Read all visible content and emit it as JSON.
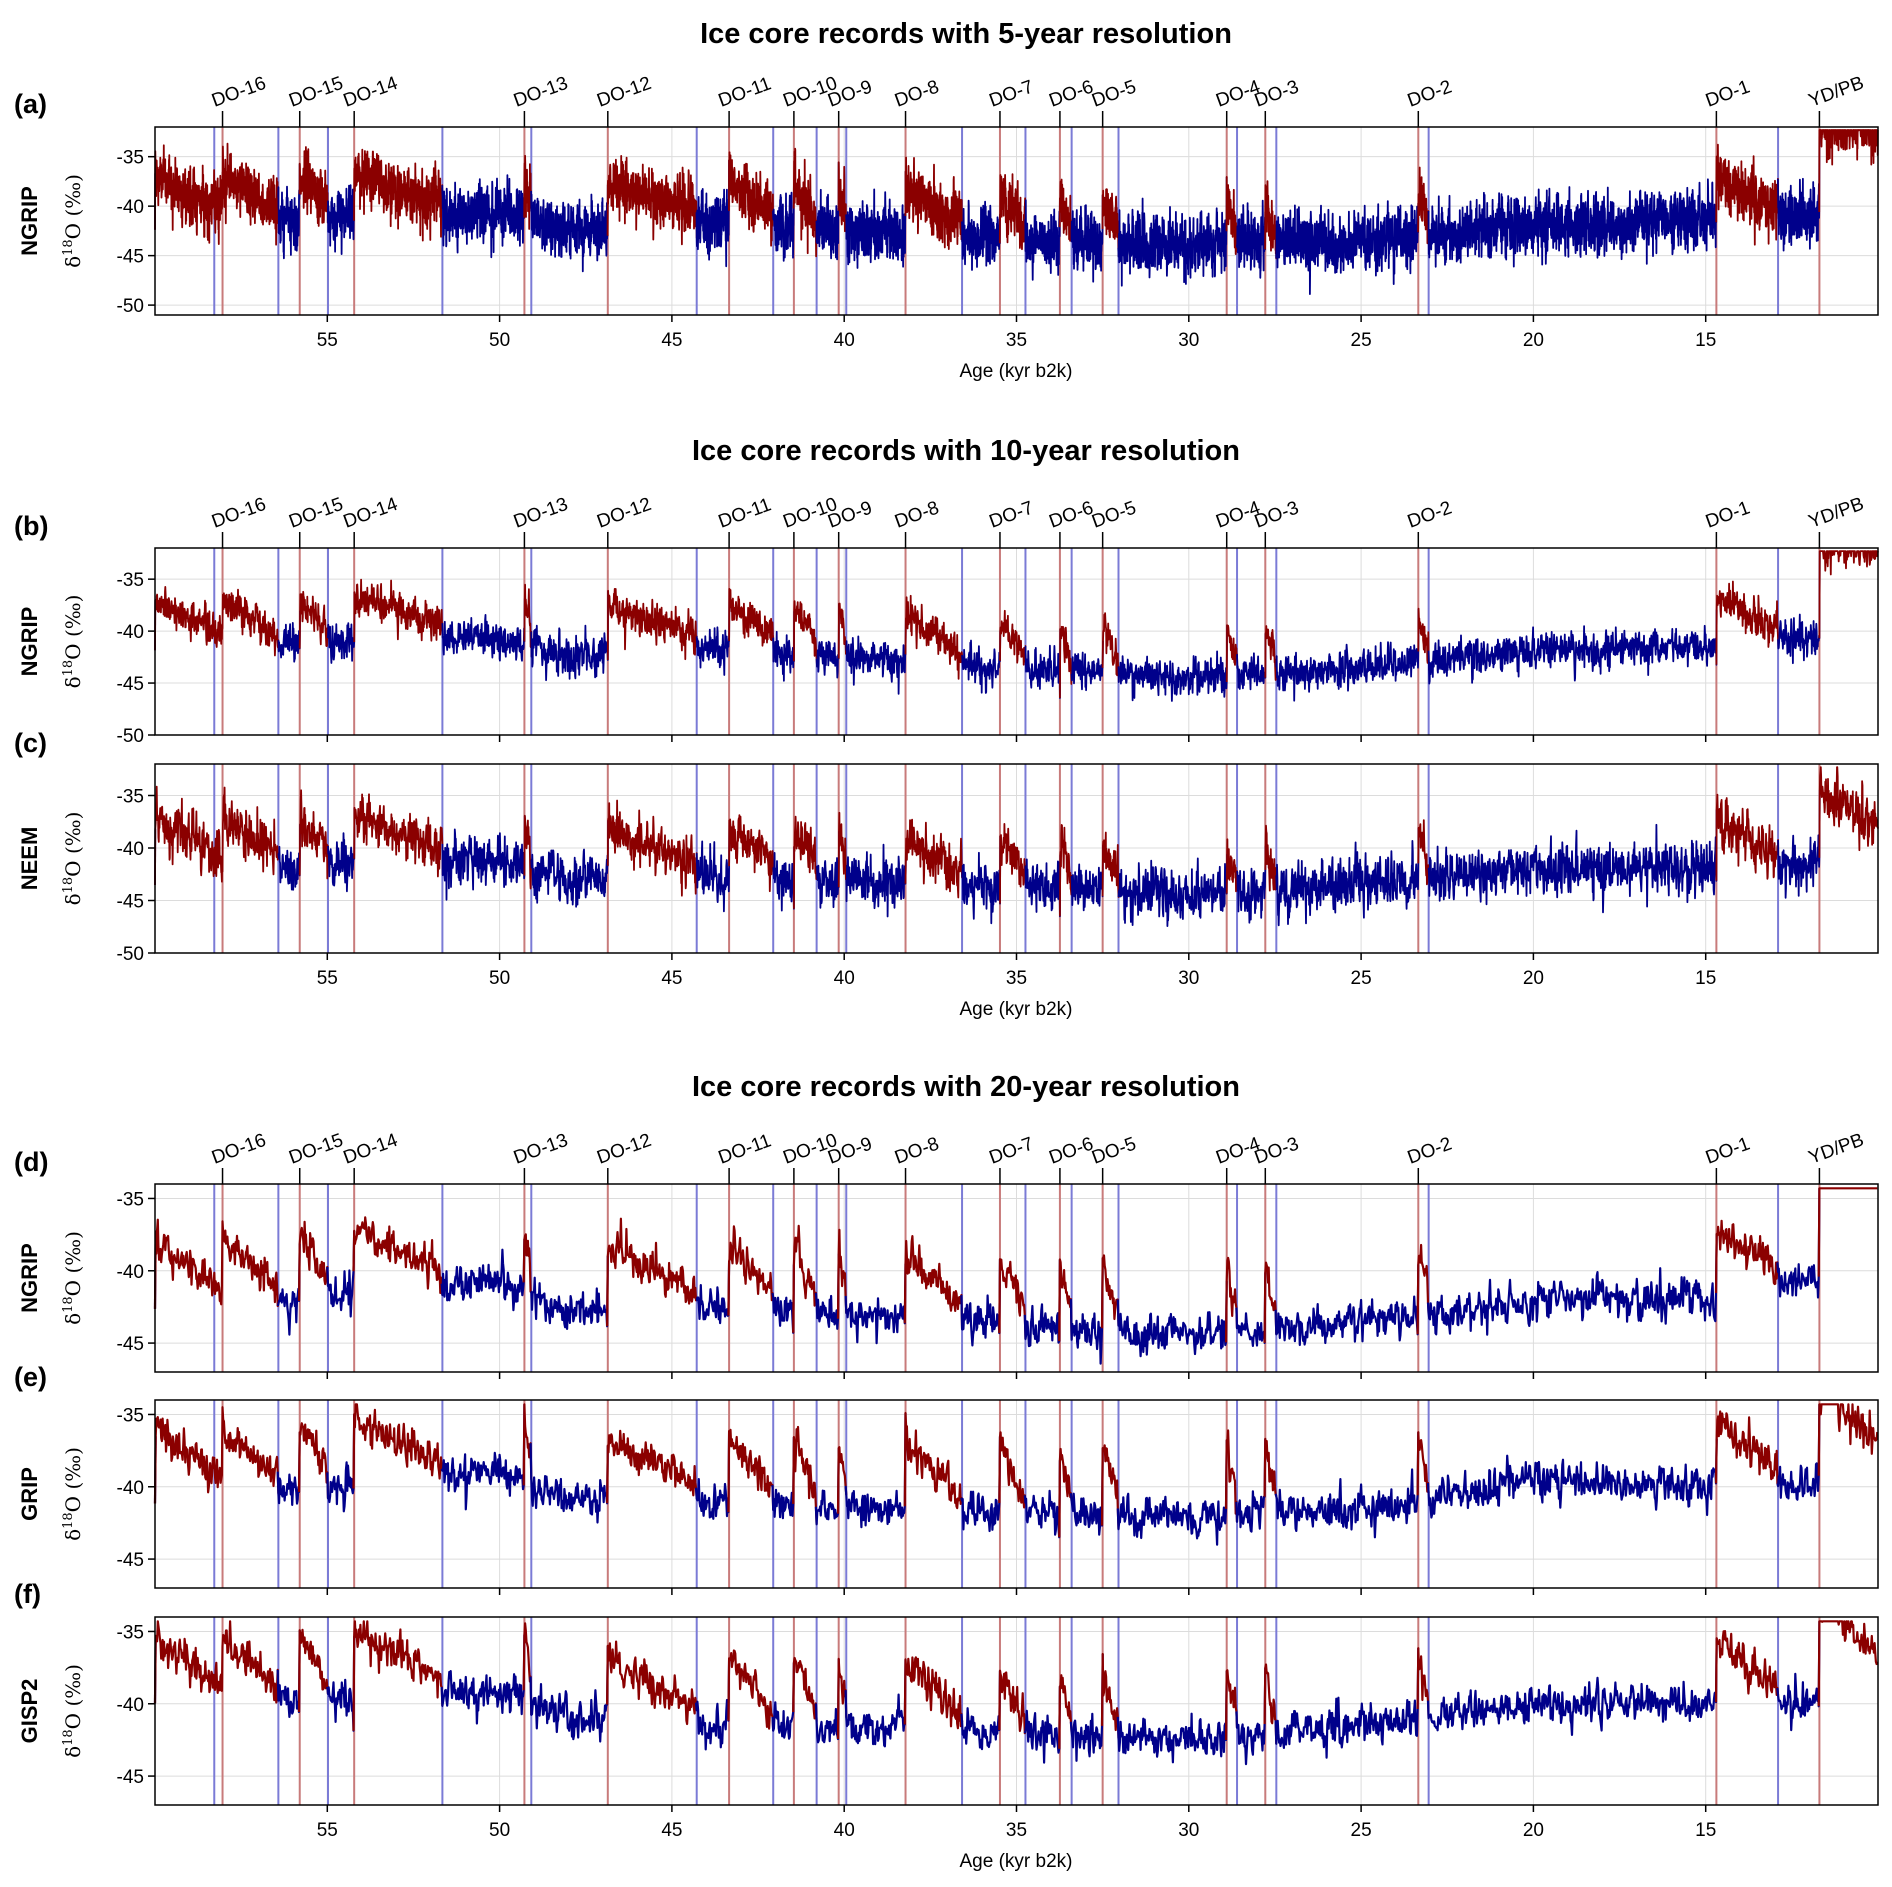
{
  "figure": {
    "sections": [
      {
        "title": "Ice core records with 5-year resolution"
      },
      {
        "title": "Ice core records with 10-year resolution"
      },
      {
        "title": "Ice core records with 20-year resolution"
      }
    ],
    "ylabel_prefix": "δ",
    "ylabel_sup": "18",
    "ylabel_suffix": "O (‰)",
    "xlabel": "Age (kyr b2k)"
  },
  "colors": {
    "stadial": "#00008B",
    "interstadial": "#8B0000",
    "stadial_line": "#7b7bd6",
    "interstadial_line": "#c87b7b",
    "grid": "#dcdcdc",
    "axis": "#000000"
  },
  "events": {
    "onsets": [
      {
        "label": "DO-16",
        "age": 58.04
      },
      {
        "label": "DO-15",
        "age": 55.8
      },
      {
        "label": "DO-14",
        "age": 54.22
      },
      {
        "label": "DO-13",
        "age": 49.28
      },
      {
        "label": "DO-12",
        "age": 46.86
      },
      {
        "label": "DO-11",
        "age": 43.34
      },
      {
        "label": "DO-10",
        "age": 41.46
      },
      {
        "label": "DO-9",
        "age": 40.16
      },
      {
        "label": "DO-8",
        "age": 38.22
      },
      {
        "label": "DO-7",
        "age": 35.48
      },
      {
        "label": "DO-6",
        "age": 33.74
      },
      {
        "label": "DO-5",
        "age": 32.5
      },
      {
        "label": "DO-4",
        "age": 28.9
      },
      {
        "label": "DO-3",
        "age": 27.78
      },
      {
        "label": "DO-2",
        "age": 23.34
      },
      {
        "label": "DO-1",
        "age": 14.69
      },
      {
        "label": "YD/PB",
        "age": 11.7
      }
    ],
    "terminations": [
      58.28,
      56.42,
      54.98,
      51.66,
      49.08,
      44.28,
      42.06,
      40.8,
      39.94,
      36.58,
      34.74,
      33.4,
      32.04,
      28.6,
      27.46,
      23.04,
      12.9
    ]
  },
  "chart_data": [
    {
      "type": "line",
      "panel_label": "(a)",
      "core": "NGRIP",
      "resolution_years": 5,
      "xlim": [
        60,
        10
      ],
      "ylim": [
        -51,
        -32
      ],
      "yticks": [
        -35,
        -40,
        -45,
        -50
      ],
      "xticks": [
        55,
        50,
        45,
        40,
        35,
        30,
        25,
        20,
        15
      ],
      "series": [
        {
          "name": "interstadial",
          "color": "#8B0000"
        },
        {
          "name": "stadial",
          "color": "#00008B"
        }
      ],
      "signal": {
        "start": -43,
        "stadial_base": -41,
        "trend": [
          [
            58,
            -41.5
          ],
          [
            50,
            -40.5
          ],
          [
            48,
            -42.5
          ],
          [
            45,
            -41.5
          ],
          [
            40,
            -42.5
          ],
          [
            30,
            -44.0
          ],
          [
            25,
            -43.5
          ],
          [
            20,
            -42
          ],
          [
            15,
            -41.5
          ],
          [
            12,
            -41
          ]
        ],
        "noise_std": 1.9
      },
      "x_ticklabels": true,
      "xlabel_shown": true
    },
    {
      "type": "line",
      "panel_label": "(b)",
      "core": "NGRIP",
      "resolution_years": 10,
      "xlim": [
        60,
        10
      ],
      "ylim": [
        -50,
        -32
      ],
      "yticks": [
        -35,
        -40,
        -45,
        -50
      ],
      "xticks": [
        55,
        50,
        45,
        40,
        35,
        30,
        25,
        20,
        15
      ],
      "series": [
        {
          "name": "interstadial",
          "color": "#8B0000"
        },
        {
          "name": "stadial",
          "color": "#00008B"
        }
      ],
      "signal": {
        "start": -43,
        "stadial_base": -41.5,
        "trend": [
          [
            58,
            -41.5
          ],
          [
            50,
            -40.5
          ],
          [
            48,
            -42.5
          ],
          [
            45,
            -41.5
          ],
          [
            40,
            -42.5
          ],
          [
            30,
            -44.5
          ],
          [
            25,
            -43.5
          ],
          [
            20,
            -42
          ],
          [
            15,
            -41.5
          ],
          [
            12,
            -40.5
          ]
        ],
        "noise_std": 1.2
      },
      "x_ticklabels": false,
      "xlabel_shown": false
    },
    {
      "type": "line",
      "panel_label": "(c)",
      "core": "NEEM",
      "resolution_years": 10,
      "xlim": [
        60,
        10
      ],
      "ylim": [
        -50,
        -32
      ],
      "yticks": [
        -35,
        -40,
        -45,
        -50
      ],
      "xticks": [
        55,
        50,
        45,
        40,
        35,
        30,
        25,
        20,
        15
      ],
      "series": [
        {
          "name": "interstadial",
          "color": "#8B0000"
        },
        {
          "name": "stadial",
          "color": "#00008B"
        }
      ],
      "signal": {
        "start": -44,
        "stadial_base": -42,
        "trend": [
          [
            58,
            -42
          ],
          [
            50,
            -41
          ],
          [
            48,
            -43
          ],
          [
            45,
            -42.5
          ],
          [
            40,
            -43
          ],
          [
            30,
            -44.5
          ],
          [
            25,
            -43.5
          ],
          [
            20,
            -42
          ],
          [
            15,
            -42
          ],
          [
            12,
            -41.5
          ]
        ],
        "noise_std": 1.6
      },
      "x_ticklabels": true,
      "xlabel_shown": true
    },
    {
      "type": "line",
      "panel_label": "(d)",
      "core": "NGRIP",
      "resolution_years": 20,
      "xlim": [
        60,
        10
      ],
      "ylim": [
        -47,
        -34
      ],
      "yticks": [
        -35,
        -40,
        -45
      ],
      "xticks": [
        55,
        50,
        45,
        40,
        35,
        30,
        25,
        20,
        15
      ],
      "series": [
        {
          "name": "interstadial",
          "color": "#8B0000"
        },
        {
          "name": "stadial",
          "color": "#00008B"
        }
      ],
      "signal": {
        "start": -43,
        "stadial_base": -42.5,
        "trend": [
          [
            58,
            -42.5
          ],
          [
            50,
            -40.5
          ],
          [
            48,
            -43
          ],
          [
            45,
            -42.5
          ],
          [
            40,
            -43
          ],
          [
            30,
            -44.5
          ],
          [
            25,
            -43.5
          ],
          [
            20,
            -42
          ],
          [
            15,
            -42
          ],
          [
            12,
            -40.5
          ]
        ],
        "noise_std": 0.9
      },
      "x_ticklabels": false,
      "xlabel_shown": false
    },
    {
      "type": "line",
      "panel_label": "(e)",
      "core": "GRIP",
      "resolution_years": 20,
      "xlim": [
        60,
        10
      ],
      "ylim": [
        -47,
        -34
      ],
      "yticks": [
        -35,
        -40,
        -45
      ],
      "xticks": [
        55,
        50,
        45,
        40,
        35,
        30,
        25,
        20,
        15
      ],
      "series": [
        {
          "name": "interstadial",
          "color": "#8B0000"
        },
        {
          "name": "stadial",
          "color": "#00008B"
        }
      ],
      "signal": {
        "start": -42,
        "stadial_base": -40.5,
        "trend": [
          [
            58,
            -40.5
          ],
          [
            50,
            -39
          ],
          [
            48,
            -41
          ],
          [
            45,
            -41
          ],
          [
            40,
            -41.5
          ],
          [
            30,
            -42
          ],
          [
            25,
            -41.5
          ],
          [
            20,
            -39.5
          ],
          [
            15,
            -40
          ],
          [
            12,
            -40
          ]
        ],
        "noise_std": 0.9
      },
      "x_ticklabels": false,
      "xlabel_shown": false
    },
    {
      "type": "line",
      "panel_label": "(f)",
      "core": "GISP2",
      "resolution_years": 20,
      "xlim": [
        60,
        10
      ],
      "ylim": [
        -47,
        -34
      ],
      "yticks": [
        -35,
        -40,
        -45
      ],
      "xticks": [
        55,
        50,
        45,
        40,
        35,
        30,
        25,
        20,
        15
      ],
      "series": [
        {
          "name": "interstadial",
          "color": "#8B0000"
        },
        {
          "name": "stadial",
          "color": "#00008B"
        }
      ],
      "signal": {
        "start": -41.5,
        "stadial_base": -40,
        "trend": [
          [
            58,
            -40
          ],
          [
            50,
            -39
          ],
          [
            48,
            -41
          ],
          [
            45,
            -41.5
          ],
          [
            40,
            -41.5
          ],
          [
            30,
            -42.5
          ],
          [
            25,
            -41.5
          ],
          [
            20,
            -40
          ],
          [
            15,
            -40
          ],
          [
            12,
            -40
          ]
        ],
        "noise_std": 0.9
      },
      "x_ticklabels": true,
      "xlabel_shown": true
    }
  ]
}
